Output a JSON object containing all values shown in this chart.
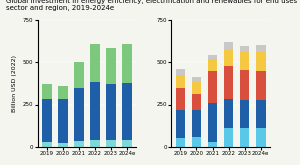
{
  "title": "Global investment in energy efficiency, electrification and renewables for end uses by\nsector and region, 2019-2024e",
  "years": [
    "2019",
    "2020",
    "2021",
    "2022",
    "2023",
    "2024e"
  ],
  "left_chart": {
    "industry": [
      30,
      25,
      35,
      40,
      38,
      40
    ],
    "buildings": [
      255,
      260,
      310,
      340,
      335,
      335
    ],
    "transport": [
      85,
      75,
      155,
      225,
      210,
      235
    ]
  },
  "right_chart": {
    "north_america": [
      55,
      60,
      30,
      110,
      110,
      110
    ],
    "europe": [
      160,
      160,
      230,
      170,
      165,
      165
    ],
    "china": [
      130,
      90,
      185,
      200,
      180,
      175
    ],
    "asia_pac": [
      80,
      70,
      75,
      100,
      105,
      110
    ],
    "other": [
      35,
      30,
      20,
      40,
      38,
      40
    ]
  },
  "left_colors": {
    "industry": "#7fd8d8",
    "buildings": "#1e5fa8",
    "transport": "#7cc87c"
  },
  "right_colors": {
    "north_america": "#5bc8e8",
    "europe": "#1e5fa8",
    "china": "#d94f3d",
    "asia_pac": "#f5c842",
    "other": "#c8c8c8"
  },
  "ylabel": "Billion USD (2022)",
  "ylim": [
    0,
    750
  ],
  "yticks": [
    0,
    250,
    500,
    750
  ],
  "background_color": "#f5f5f0",
  "title_fontsize": 5.0,
  "axis_fontsize": 4.5,
  "tick_fontsize": 4.0,
  "legend_fontsize": 3.8
}
